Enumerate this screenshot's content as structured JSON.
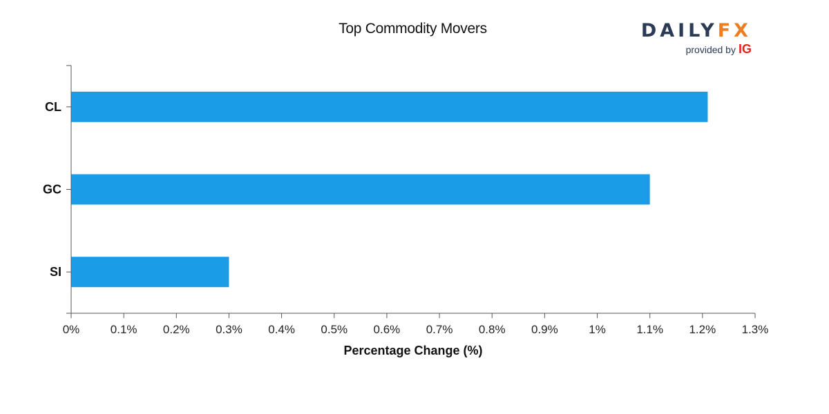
{
  "chart_data": {
    "type": "bar",
    "orientation": "horizontal",
    "title": "Top Commodity Movers",
    "xlabel": "Percentage Change (%)",
    "ylabel": "",
    "categories": [
      "CL",
      "GC",
      "SI"
    ],
    "values": [
      1.21,
      1.1,
      0.3
    ],
    "xlim": [
      0,
      1.3
    ],
    "xticks": [
      "0%",
      "0.1%",
      "0.2%",
      "0.3%",
      "0.4%",
      "0.5%",
      "0.6%",
      "0.7%",
      "0.8%",
      "0.9%",
      "1%",
      "1.1%",
      "1.2%",
      "1.3%"
    ],
    "bar_color": "#1a9de6",
    "grid": false,
    "legend": "none"
  },
  "logo": {
    "brand_left": "DAILY",
    "brand_right": "FX",
    "provided_by": "provided by",
    "provider": "IG",
    "colors": {
      "daily": "#2b3a55",
      "fx": "#ef7d22",
      "ig": "#e4251b"
    }
  }
}
